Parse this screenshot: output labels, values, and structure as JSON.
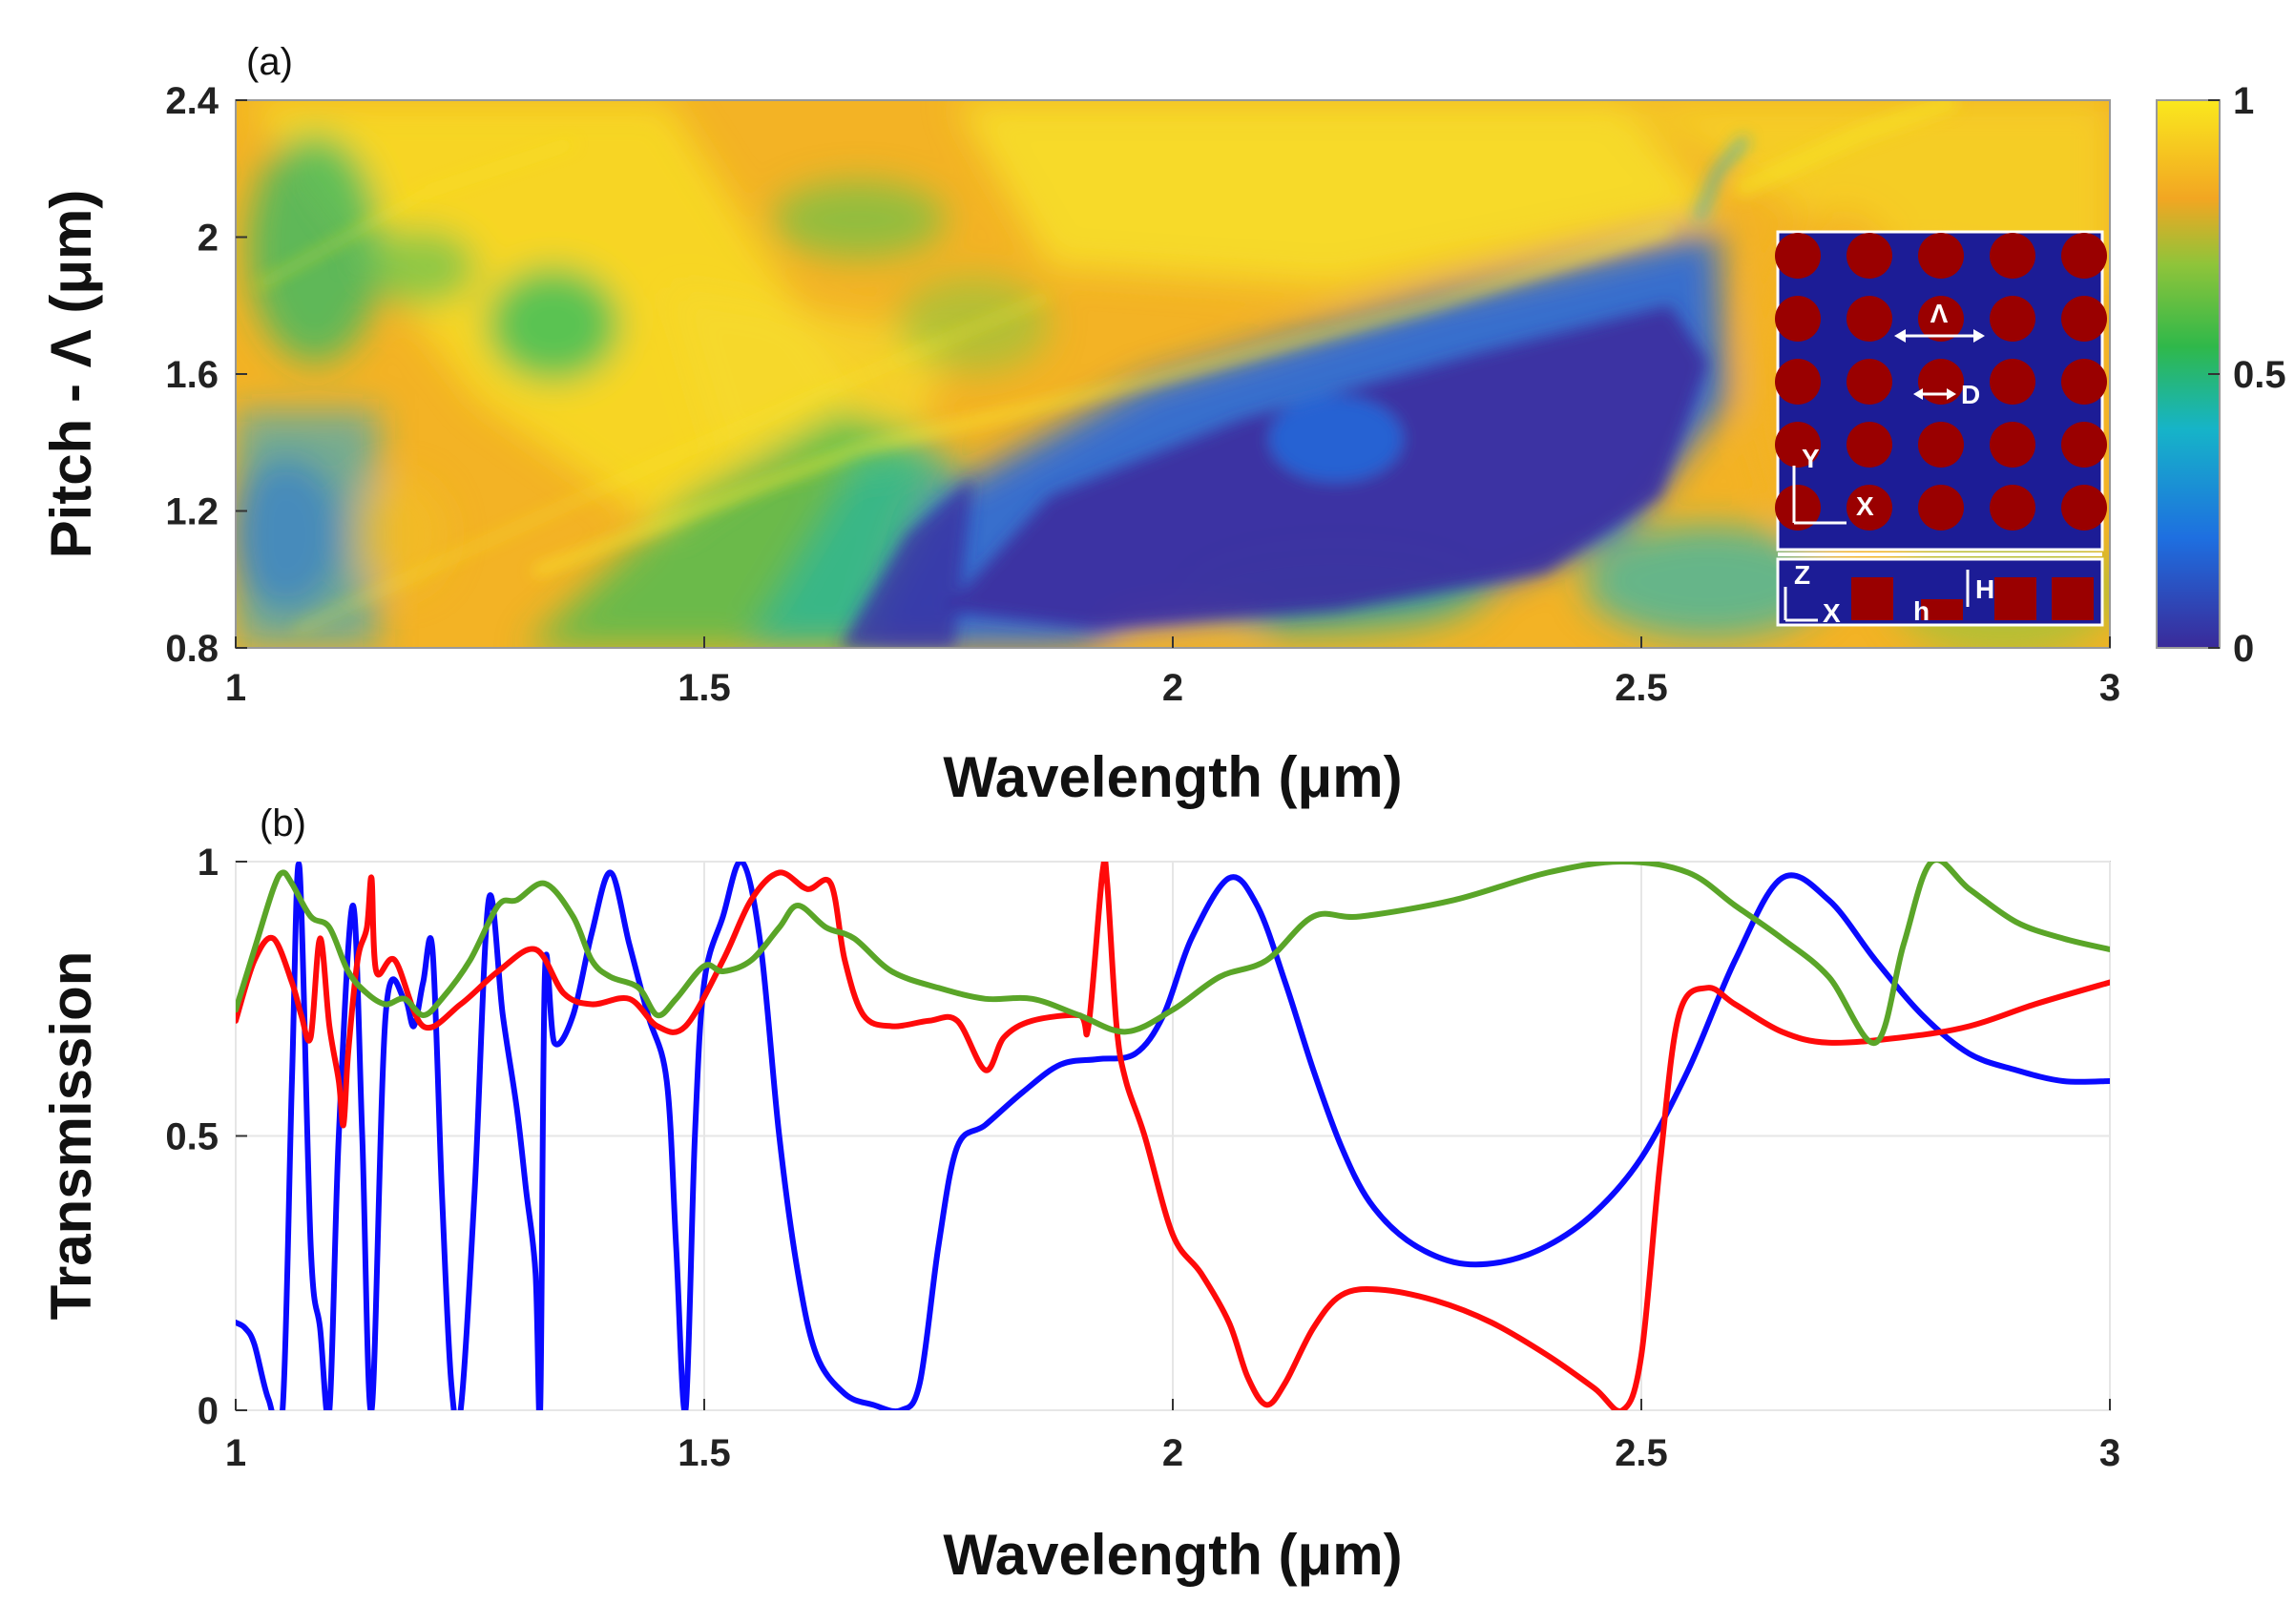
{
  "chart_data": [
    {
      "type": "heatmap",
      "panel_label": "(a)",
      "xlabel": "Wavelength (μm)",
      "ylabel": "Pitch - Λ (μm)",
      "xlim": [
        1,
        3
      ],
      "ylim": [
        0.8,
        2.4
      ],
      "xticks": [
        "1",
        "1.5",
        "2",
        "2.5",
        "3"
      ],
      "yticks": [
        "0.8",
        "1.2",
        "1.6",
        "2",
        "2.4"
      ],
      "colorbar": {
        "ticks": [
          "0",
          "0.5",
          "1"
        ],
        "range": [
          0,
          1
        ],
        "colors": [
          "#3a2a99",
          "#1e6fe0",
          "#16b4c8",
          "#2fb84a",
          "#8fc43a",
          "#f2a622",
          "#fae81e"
        ]
      },
      "description_regions": {
        "low_band_peak_min": [
          2.15,
          1.45
        ]
      },
      "inset": {
        "labels": {
          "pitch": "Λ",
          "diameter": "D",
          "y_axis": "Y",
          "x_axis": "X",
          "z_axis": "Z",
          "x_axis2": "X",
          "height_small": "h",
          "height_big": "H"
        },
        "background_color": "#1c1c96",
        "pillar_color": "#9a0000"
      }
    },
    {
      "type": "line",
      "panel_label": "(b)",
      "xlabel": "Wavelength (μm)",
      "ylabel": "Transmission",
      "xlim": [
        1,
        3
      ],
      "ylim": [
        0,
        1
      ],
      "xticks": [
        "1",
        "1.5",
        "2",
        "2.5",
        "3"
      ],
      "yticks": [
        "0",
        "0.5",
        "1"
      ],
      "series": [
        {
          "color": "#0a0aff",
          "points": [
            [
              1.0,
              0.16
            ],
            [
              1.01,
              0.15
            ],
            [
              1.02,
              0.12
            ],
            [
              1.035,
              0.02
            ],
            [
              1.05,
              0.0
            ],
            [
              1.06,
              0.6
            ],
            [
              1.068,
              0.99
            ],
            [
              1.08,
              0.3
            ],
            [
              1.09,
              0.15
            ],
            [
              1.1,
              0.0
            ],
            [
              1.11,
              0.5
            ],
            [
              1.125,
              0.92
            ],
            [
              1.135,
              0.5
            ],
            [
              1.145,
              0.0
            ],
            [
              1.16,
              0.72
            ],
            [
              1.18,
              0.75
            ],
            [
              1.19,
              0.7
            ],
            [
              1.2,
              0.78
            ],
            [
              1.21,
              0.84
            ],
            [
              1.22,
              0.4
            ],
            [
              1.23,
              0.05
            ],
            [
              1.24,
              0.0
            ],
            [
              1.255,
              0.4
            ],
            [
              1.27,
              0.93
            ],
            [
              1.285,
              0.72
            ],
            [
              1.3,
              0.55
            ],
            [
              1.31,
              0.4
            ],
            [
              1.32,
              0.25
            ],
            [
              1.325,
              0.0
            ],
            [
              1.33,
              0.8
            ],
            [
              1.34,
              0.67
            ],
            [
              1.36,
              0.72
            ],
            [
              1.38,
              0.87
            ],
            [
              1.4,
              0.98
            ],
            [
              1.42,
              0.85
            ],
            [
              1.44,
              0.72
            ],
            [
              1.46,
              0.6
            ],
            [
              1.47,
              0.3
            ],
            [
              1.48,
              0.0
            ],
            [
              1.49,
              0.5
            ],
            [
              1.5,
              0.78
            ],
            [
              1.52,
              0.9
            ],
            [
              1.54,
              1.0
            ],
            [
              1.56,
              0.85
            ],
            [
              1.58,
              0.5
            ],
            [
              1.6,
              0.25
            ],
            [
              1.62,
              0.1
            ],
            [
              1.65,
              0.03
            ],
            [
              1.68,
              0.01
            ],
            [
              1.71,
              0.0
            ],
            [
              1.73,
              0.05
            ],
            [
              1.75,
              0.3
            ],
            [
              1.77,
              0.48
            ],
            [
              1.8,
              0.52
            ],
            [
              1.84,
              0.58
            ],
            [
              1.88,
              0.63
            ],
            [
              1.92,
              0.64
            ],
            [
              1.96,
              0.65
            ],
            [
              1.99,
              0.72
            ],
            [
              2.02,
              0.86
            ],
            [
              2.06,
              0.97
            ],
            [
              2.09,
              0.92
            ],
            [
              2.12,
              0.78
            ],
            [
              2.15,
              0.62
            ],
            [
              2.18,
              0.48
            ],
            [
              2.21,
              0.38
            ],
            [
              2.25,
              0.31
            ],
            [
              2.3,
              0.27
            ],
            [
              2.35,
              0.27
            ],
            [
              2.4,
              0.3
            ],
            [
              2.45,
              0.36
            ],
            [
              2.5,
              0.46
            ],
            [
              2.55,
              0.62
            ],
            [
              2.6,
              0.82
            ],
            [
              2.65,
              0.97
            ],
            [
              2.7,
              0.93
            ],
            [
              2.75,
              0.82
            ],
            [
              2.8,
              0.72
            ],
            [
              2.85,
              0.65
            ],
            [
              2.9,
              0.62
            ],
            [
              2.95,
              0.6
            ],
            [
              3.0,
              0.6
            ]
          ]
        },
        {
          "color": "#ff0a0a",
          "points": [
            [
              1.0,
              0.71
            ],
            [
              1.02,
              0.82
            ],
            [
              1.04,
              0.86
            ],
            [
              1.06,
              0.78
            ],
            [
              1.07,
              0.72
            ],
            [
              1.08,
              0.68
            ],
            [
              1.09,
              0.86
            ],
            [
              1.1,
              0.7
            ],
            [
              1.11,
              0.6
            ],
            [
              1.115,
              0.52
            ],
            [
              1.12,
              0.65
            ],
            [
              1.13,
              0.82
            ],
            [
              1.14,
              0.88
            ],
            [
              1.145,
              0.97
            ],
            [
              1.15,
              0.8
            ],
            [
              1.17,
              0.82
            ],
            [
              1.2,
              0.7
            ],
            [
              1.24,
              0.74
            ],
            [
              1.28,
              0.8
            ],
            [
              1.32,
              0.84
            ],
            [
              1.35,
              0.76
            ],
            [
              1.38,
              0.74
            ],
            [
              1.42,
              0.75
            ],
            [
              1.45,
              0.7
            ],
            [
              1.48,
              0.7
            ],
            [
              1.52,
              0.82
            ],
            [
              1.55,
              0.93
            ],
            [
              1.58,
              0.98
            ],
            [
              1.61,
              0.95
            ],
            [
              1.635,
              0.96
            ],
            [
              1.65,
              0.82
            ],
            [
              1.67,
              0.72
            ],
            [
              1.7,
              0.7
            ],
            [
              1.74,
              0.71
            ],
            [
              1.77,
              0.71
            ],
            [
              1.8,
              0.62
            ],
            [
              1.82,
              0.68
            ],
            [
              1.85,
              0.71
            ],
            [
              1.9,
              0.72
            ],
            [
              1.91,
              0.7
            ],
            [
              1.925,
              0.98
            ],
            [
              1.93,
              0.96
            ],
            [
              1.94,
              0.7
            ],
            [
              1.95,
              0.6
            ],
            [
              1.97,
              0.5
            ],
            [
              2.0,
              0.32
            ],
            [
              2.03,
              0.25
            ],
            [
              2.06,
              0.16
            ],
            [
              2.08,
              0.06
            ],
            [
              2.1,
              0.01
            ],
            [
              2.12,
              0.05
            ],
            [
              2.15,
              0.15
            ],
            [
              2.18,
              0.21
            ],
            [
              2.22,
              0.22
            ],
            [
              2.28,
              0.2
            ],
            [
              2.34,
              0.16
            ],
            [
              2.4,
              0.1
            ],
            [
              2.45,
              0.04
            ],
            [
              2.48,
              0.0
            ],
            [
              2.5,
              0.1
            ],
            [
              2.52,
              0.45
            ],
            [
              2.54,
              0.72
            ],
            [
              2.57,
              0.77
            ],
            [
              2.6,
              0.74
            ],
            [
              2.65,
              0.69
            ],
            [
              2.7,
              0.67
            ],
            [
              2.78,
              0.68
            ],
            [
              2.85,
              0.7
            ],
            [
              2.92,
              0.74
            ],
            [
              3.0,
              0.78
            ]
          ]
        },
        {
          "color": "#5aa528",
          "points": [
            [
              1.0,
              0.73
            ],
            [
              1.02,
              0.84
            ],
            [
              1.04,
              0.95
            ],
            [
              1.05,
              0.98
            ],
            [
              1.06,
              0.96
            ],
            [
              1.08,
              0.9
            ],
            [
              1.1,
              0.88
            ],
            [
              1.12,
              0.8
            ],
            [
              1.14,
              0.76
            ],
            [
              1.16,
              0.74
            ],
            [
              1.18,
              0.75
            ],
            [
              1.2,
              0.72
            ],
            [
              1.22,
              0.75
            ],
            [
              1.25,
              0.82
            ],
            [
              1.28,
              0.92
            ],
            [
              1.3,
              0.93
            ],
            [
              1.33,
              0.96
            ],
            [
              1.36,
              0.9
            ],
            [
              1.38,
              0.82
            ],
            [
              1.4,
              0.79
            ],
            [
              1.43,
              0.77
            ],
            [
              1.45,
              0.72
            ],
            [
              1.47,
              0.75
            ],
            [
              1.5,
              0.81
            ],
            [
              1.52,
              0.8
            ],
            [
              1.55,
              0.82
            ],
            [
              1.58,
              0.88
            ],
            [
              1.6,
              0.92
            ],
            [
              1.63,
              0.88
            ],
            [
              1.66,
              0.86
            ],
            [
              1.7,
              0.8
            ],
            [
              1.75,
              0.77
            ],
            [
              1.8,
              0.75
            ],
            [
              1.85,
              0.75
            ],
            [
              1.9,
              0.72
            ],
            [
              1.95,
              0.69
            ],
            [
              2.0,
              0.73
            ],
            [
              2.05,
              0.79
            ],
            [
              2.1,
              0.82
            ],
            [
              2.15,
              0.9
            ],
            [
              2.2,
              0.9
            ],
            [
              2.3,
              0.93
            ],
            [
              2.4,
              0.98
            ],
            [
              2.48,
              1.0
            ],
            [
              2.55,
              0.98
            ],
            [
              2.6,
              0.92
            ],
            [
              2.65,
              0.86
            ],
            [
              2.7,
              0.79
            ],
            [
              2.75,
              0.67
            ],
            [
              2.78,
              0.85
            ],
            [
              2.81,
              1.0
            ],
            [
              2.85,
              0.95
            ],
            [
              2.9,
              0.89
            ],
            [
              2.95,
              0.86
            ],
            [
              3.0,
              0.84
            ]
          ]
        }
      ]
    }
  ]
}
